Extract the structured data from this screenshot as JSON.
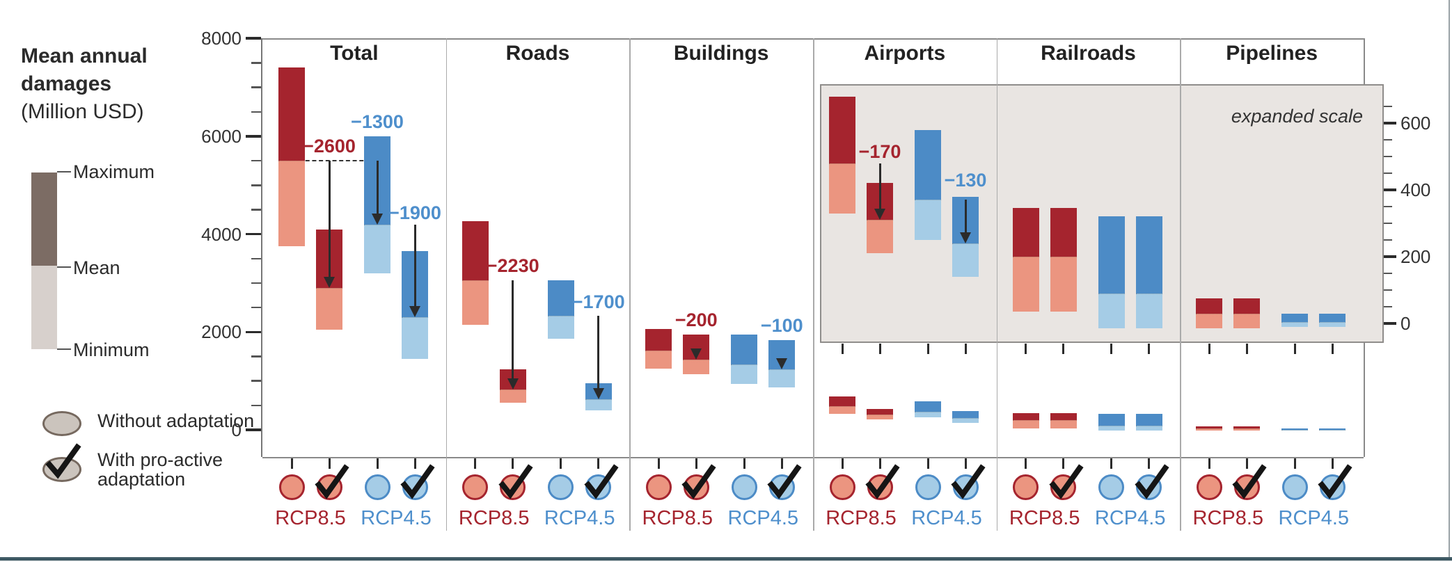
{
  "legend": {
    "title_bold1": "Mean annual",
    "title_bold2": "damages",
    "title_sub": "(Million USD)",
    "maximum": "Maximum",
    "mean": "Mean",
    "minimum": "Minimum",
    "without": "Without adaptation",
    "with_line1": "With pro-active",
    "with_line2": "adaptation"
  },
  "axes": {
    "left": {
      "major_ticks": [
        8000,
        6000,
        4000,
        2000,
        0
      ],
      "minor_step": 500
    },
    "right": {
      "major_ticks": [
        600,
        400,
        200,
        0
      ],
      "minor_step": 50,
      "label": "expanded scale"
    }
  },
  "scenarios": {
    "rcp85": "RCP8.5",
    "rcp45": "RCP4.5"
  },
  "chart_data": {
    "type": "bar",
    "subtype": "floating min-mean-max range bars",
    "unit": "Million USD",
    "title": "Mean annual damages (Million USD)",
    "bar_order": [
      "RCP8.5 without adaptation",
      "RCP8.5 with pro-active adaptation",
      "RCP4.5 without adaptation",
      "RCP4.5 with pro-active adaptation"
    ],
    "panels": [
      {
        "title": "Total",
        "scale": "main",
        "bars": [
          {
            "max": 7400,
            "mean": 5500,
            "min": 3750
          },
          {
            "max": 4100,
            "mean": 2900,
            "min": 2050
          },
          {
            "max": 6000,
            "mean": 4200,
            "min": 3200
          },
          {
            "max": 3650,
            "mean": 2300,
            "min": 1450
          }
        ],
        "dashed_reference": 5500,
        "arrows": [
          {
            "label": "−2600",
            "scenario": "rcp85",
            "bar": 1,
            "from": 5500,
            "to": 2900,
            "label_value": 5800
          },
          {
            "label": "−1300",
            "scenario": "rcp45",
            "bar": 2,
            "from": 5500,
            "to": 4200,
            "label_value": 6300
          },
          {
            "label": "−1900",
            "scenario": "rcp45",
            "bar": 3,
            "from": 4200,
            "to": 2300,
            "label_value": 4430
          }
        ]
      },
      {
        "title": "Roads",
        "scale": "main",
        "bars": [
          {
            "max": 4270,
            "mean": 3060,
            "min": 2150
          },
          {
            "max": 1230,
            "mean": 830,
            "min": 560
          },
          {
            "max": 3060,
            "mean": 2330,
            "min": 1860
          },
          {
            "max": 950,
            "mean": 630,
            "min": 400
          }
        ],
        "arrows": [
          {
            "label": "−2230",
            "scenario": "rcp85",
            "bar": 1,
            "from": 3060,
            "to": 830,
            "label_value": 3360
          },
          {
            "label": "−1700",
            "scenario": "rcp45",
            "bar": 3,
            "from": 2330,
            "to": 630,
            "label_value": 2620
          }
        ]
      },
      {
        "title": "Buildings",
        "scale": "main",
        "bars": [
          {
            "max": 2060,
            "mean": 1620,
            "min": 1250
          },
          {
            "max": 1950,
            "mean": 1430,
            "min": 1140
          },
          {
            "max": 1950,
            "mean": 1330,
            "min": 940
          },
          {
            "max": 1840,
            "mean": 1230,
            "min": 870
          }
        ],
        "arrows": [
          {
            "label": "−200",
            "scenario": "rcp85",
            "bar": 1,
            "from": 1620,
            "to": 1430,
            "label_value": 2240
          },
          {
            "label": "−100",
            "scenario": "rcp45",
            "bar": 3,
            "from": 1330,
            "to": 1230,
            "label_value": 2130
          }
        ]
      },
      {
        "title": "Airports",
        "scale": "expanded",
        "bars": [
          {
            "max": 680,
            "mean": 480,
            "min": 330
          },
          {
            "max": 420,
            "mean": 310,
            "min": 210
          },
          {
            "max": 580,
            "mean": 370,
            "min": 250
          },
          {
            "max": 380,
            "mean": 240,
            "min": 140
          }
        ],
        "arrows": [
          {
            "label": "−170",
            "scenario": "rcp85",
            "bar": 1,
            "from": 480,
            "to": 310,
            "label_value": 515
          },
          {
            "label": "−130",
            "scenario": "rcp45",
            "bar": 3,
            "from": 370,
            "to": 240,
            "label_value": 430
          }
        ]
      },
      {
        "title": "Railroads",
        "scale": "expanded",
        "bars": [
          {
            "max": 345,
            "mean": 200,
            "min": 35
          },
          {
            "max": 345,
            "mean": 200,
            "min": 35
          },
          {
            "max": 320,
            "mean": 90,
            "min": -15
          },
          {
            "max": 320,
            "mean": 90,
            "min": -15
          }
        ],
        "arrows": []
      },
      {
        "title": "Pipelines",
        "scale": "expanded",
        "bars": [
          {
            "max": 75,
            "mean": 30,
            "min": -15
          },
          {
            "max": 75,
            "mean": 30,
            "min": -15
          },
          {
            "max": 30,
            "mean": 5,
            "min": -10
          },
          {
            "max": 30,
            "mean": 5,
            "min": -10
          }
        ],
        "arrows": []
      }
    ]
  },
  "colors": {
    "rcp85_dark": "#a5242e",
    "rcp85_light": "#eb9580",
    "rcp45_dark": "#4c8bc6",
    "rcp45_light": "#a5cce6",
    "label_red": "#a5242e",
    "label_blue": "#4e8fcc",
    "legend_dark": "#7c6c64",
    "legend_light": "#d7d0cc",
    "ellipse_fill": "#cbc4bd",
    "ellipse_stroke": "#76695f",
    "box_fill": "#e9e5e2",
    "box_stroke": "#8f8d8b",
    "frame": "#8a8a8a",
    "tick": "#2b2b2b",
    "arrow": "#2b2b2b",
    "bottom_bar": "#3f5a64",
    "right_edge": "#9aa3a7"
  }
}
